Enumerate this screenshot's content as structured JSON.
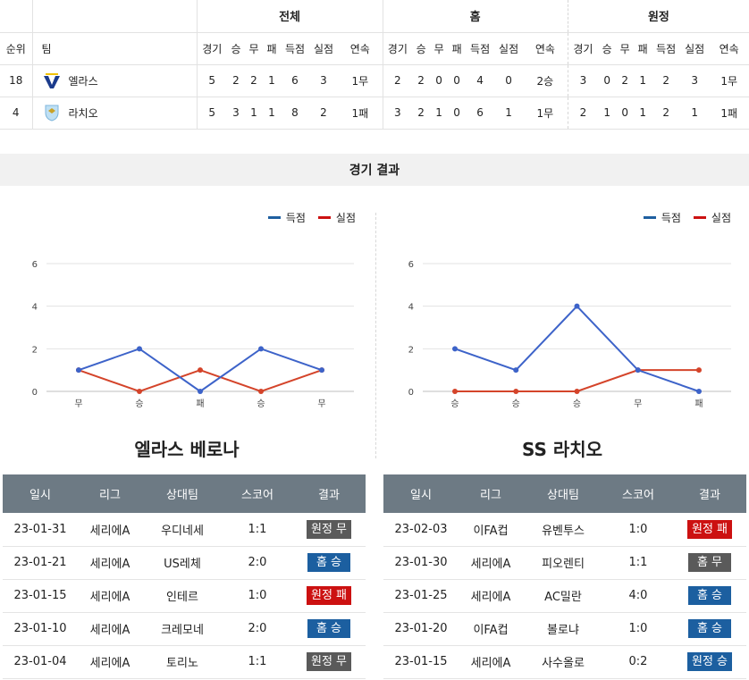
{
  "standings": {
    "groups": [
      "전체",
      "홈",
      "원정"
    ],
    "col_rank": "순위",
    "col_team": "팀",
    "sub_headers": [
      "경기",
      "승",
      "무",
      "패",
      "득점",
      "실점",
      "연속"
    ],
    "rows": [
      {
        "rank": "18",
        "team": "엘라스",
        "logo": "verona-logo",
        "total": [
          "5",
          "2",
          "2",
          "1",
          "6",
          "3",
          "1무"
        ],
        "home": [
          "2",
          "2",
          "0",
          "0",
          "4",
          "0",
          "2승"
        ],
        "away": [
          "3",
          "0",
          "2",
          "1",
          "2",
          "3",
          "1무"
        ]
      },
      {
        "rank": "4",
        "team": "라치오",
        "logo": "lazio-logo",
        "total": [
          "5",
          "3",
          "1",
          "1",
          "8",
          "2",
          "1패"
        ],
        "home": [
          "3",
          "2",
          "1",
          "0",
          "6",
          "1",
          "1무"
        ],
        "away": [
          "2",
          "1",
          "0",
          "1",
          "2",
          "1",
          "1패"
        ]
      }
    ]
  },
  "section_title": "경기 결과",
  "legend": {
    "scored": "득점",
    "conceded": "실점"
  },
  "colors": {
    "scored": "#3d63c9",
    "conceded": "#d4442a",
    "win": "#1c5fa0",
    "draw": "#5a5a5a",
    "loss": "#cc1111",
    "header": "#6d7a84"
  },
  "chart_data": [
    {
      "type": "line",
      "categories": [
        "무",
        "승",
        "패",
        "승",
        "무"
      ],
      "series": [
        {
          "name": "득점",
          "values": [
            1,
            2,
            0,
            2,
            1
          ]
        },
        {
          "name": "실점",
          "values": [
            1,
            0,
            1,
            0,
            1
          ]
        }
      ],
      "ylim": [
        0,
        6
      ],
      "yticks": [
        0,
        2,
        4,
        6
      ],
      "grid": true,
      "legend": "top-right"
    },
    {
      "type": "line",
      "categories": [
        "승",
        "승",
        "승",
        "무",
        "패"
      ],
      "series": [
        {
          "name": "득점",
          "values": [
            2,
            1,
            4,
            1,
            0
          ]
        },
        {
          "name": "실점",
          "values": [
            0,
            0,
            0,
            1,
            1
          ]
        }
      ],
      "ylim": [
        0,
        6
      ],
      "yticks": [
        0,
        2,
        4,
        6
      ],
      "grid": true,
      "legend": "top-right"
    }
  ],
  "teams": [
    {
      "title": "엘라스 베로나",
      "headers": [
        "일시",
        "리그",
        "상대팀",
        "스코어",
        "결과"
      ],
      "matches": [
        {
          "date": "23-01-31",
          "league": "세리에A",
          "opponent": "우디네세",
          "score": "1:1",
          "result": "원정 무",
          "kind": "draw"
        },
        {
          "date": "23-01-21",
          "league": "세리에A",
          "opponent": "US레체",
          "score": "2:0",
          "result": "홈 승",
          "kind": "win"
        },
        {
          "date": "23-01-15",
          "league": "세리에A",
          "opponent": "인테르",
          "score": "1:0",
          "result": "원정 패",
          "kind": "loss"
        },
        {
          "date": "23-01-10",
          "league": "세리에A",
          "opponent": "크레모네",
          "score": "2:0",
          "result": "홈 승",
          "kind": "win"
        },
        {
          "date": "23-01-04",
          "league": "세리에A",
          "opponent": "토리노",
          "score": "1:1",
          "result": "원정 무",
          "kind": "draw"
        }
      ]
    },
    {
      "title": "SS 라치오",
      "headers": [
        "일시",
        "리그",
        "상대팀",
        "스코어",
        "결과"
      ],
      "matches": [
        {
          "date": "23-02-03",
          "league": "이FA컵",
          "opponent": "유벤투스",
          "score": "1:0",
          "result": "원정 패",
          "kind": "loss"
        },
        {
          "date": "23-01-30",
          "league": "세리에A",
          "opponent": "피오렌티",
          "score": "1:1",
          "result": "홈 무",
          "kind": "draw"
        },
        {
          "date": "23-01-25",
          "league": "세리에A",
          "opponent": "AC밀란",
          "score": "4:0",
          "result": "홈 승",
          "kind": "win"
        },
        {
          "date": "23-01-20",
          "league": "이FA컵",
          "opponent": "볼로냐",
          "score": "1:0",
          "result": "홈 승",
          "kind": "win"
        },
        {
          "date": "23-01-15",
          "league": "세리에A",
          "opponent": "사수올로",
          "score": "0:2",
          "result": "원정 승",
          "kind": "win"
        }
      ]
    }
  ]
}
